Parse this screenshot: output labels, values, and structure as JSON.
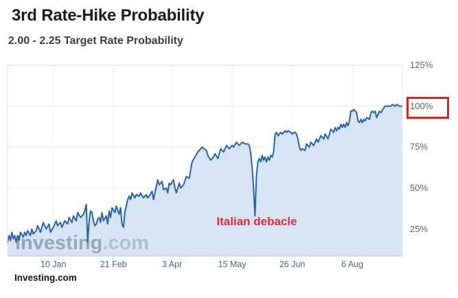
{
  "page": {
    "title": "3rd Rate-Hike Probability",
    "subtitle": "2.00 - 2.25 Target Rate Probability",
    "source": "Investing.com"
  },
  "watermark": {
    "brand": "Investing",
    "domain": ".com"
  },
  "annotation": {
    "text": "Italian debacle",
    "color": "#e22b2b",
    "anchor_day": 173
  },
  "highlight": {
    "label": "100%",
    "y_value": 100,
    "box_color": "#e01f1f"
  },
  "chart_data": {
    "type": "area",
    "title": "3rd Rate-Hike Probability",
    "subtitle": "2.00 - 2.25 Target Rate Probability",
    "x_unit": "days since start date",
    "start_date": "2017-12-09",
    "end_date": "2018-09-11",
    "x_domain": [
      0,
      276
    ],
    "y_visible_range": [
      8.4,
      125
    ],
    "ylabel": "probability (%)",
    "grid": true,
    "legend": false,
    "line_color": "#2563a7",
    "fill_color": "#d7e4f4",
    "grid_color": "#ececf3",
    "y_ticks": [
      25,
      50,
      75,
      100,
      125
    ],
    "y_tick_labels": [
      "25%",
      "50%",
      "75%",
      "100%",
      "125%"
    ],
    "x_ticks": [
      {
        "day": 32,
        "label": "10 Jan"
      },
      {
        "day": 74,
        "label": "21 Feb"
      },
      {
        "day": 115,
        "label": "3 Apr"
      },
      {
        "day": 157,
        "label": "15 May"
      },
      {
        "day": 199,
        "label": "26 Jun"
      },
      {
        "day": 241,
        "label": "6 Aug"
      }
    ],
    "points": [
      [
        0,
        17
      ],
      [
        1,
        21
      ],
      [
        2,
        18
      ],
      [
        3,
        23
      ],
      [
        4,
        19
      ],
      [
        5,
        21
      ],
      [
        6,
        17
      ],
      [
        7,
        21
      ],
      [
        8,
        18
      ],
      [
        9,
        23
      ],
      [
        11,
        20
      ],
      [
        12,
        23
      ],
      [
        13,
        21
      ],
      [
        14,
        24
      ],
      [
        16,
        21
      ],
      [
        17,
        25
      ],
      [
        18,
        22
      ],
      [
        20,
        24
      ],
      [
        21,
        27
      ],
      [
        23,
        23
      ],
      [
        24,
        26
      ],
      [
        25,
        29
      ],
      [
        27,
        25
      ],
      [
        29,
        28
      ],
      [
        30,
        23
      ],
      [
        32,
        26
      ],
      [
        34,
        30
      ],
      [
        35,
        27
      ],
      [
        37,
        29
      ],
      [
        38,
        26
      ],
      [
        40,
        30
      ],
      [
        42,
        28
      ],
      [
        43,
        32
      ],
      [
        45,
        29
      ],
      [
        46,
        33
      ],
      [
        48,
        30
      ],
      [
        49,
        35
      ],
      [
        51,
        32
      ],
      [
        53,
        34
      ],
      [
        54,
        36
      ],
      [
        55,
        40
      ],
      [
        56,
        17
      ],
      [
        57,
        30
      ],
      [
        58,
        36
      ],
      [
        59,
        35
      ],
      [
        60,
        30
      ],
      [
        61,
        27
      ],
      [
        62,
        28
      ],
      [
        63,
        31
      ],
      [
        64,
        32
      ],
      [
        65,
        29
      ],
      [
        66,
        35
      ],
      [
        67,
        30
      ],
      [
        69,
        33
      ],
      [
        70,
        28
      ],
      [
        71,
        36
      ],
      [
        72,
        32
      ],
      [
        73,
        38
      ],
      [
        75,
        35
      ],
      [
        76,
        39
      ],
      [
        78,
        34
      ],
      [
        79,
        38
      ],
      [
        80,
        28
      ],
      [
        81,
        26
      ],
      [
        82,
        35
      ],
      [
        84,
        43
      ],
      [
        85,
        45
      ],
      [
        86,
        43
      ],
      [
        87,
        47
      ],
      [
        89,
        44
      ],
      [
        90,
        46
      ],
      [
        92,
        45
      ],
      [
        93,
        47
      ],
      [
        95,
        44
      ],
      [
        97,
        46
      ],
      [
        98,
        44
      ],
      [
        99,
        45
      ],
      [
        101,
        48
      ],
      [
        102,
        43
      ],
      [
        104,
        51
      ],
      [
        105,
        55
      ],
      [
        106,
        52
      ],
      [
        108,
        54
      ],
      [
        109,
        49
      ],
      [
        111,
        50
      ],
      [
        112,
        47
      ],
      [
        113,
        53
      ],
      [
        114,
        52
      ],
      [
        116,
        55
      ],
      [
        117,
        50
      ],
      [
        118,
        47
      ],
      [
        120,
        53
      ],
      [
        121,
        50
      ],
      [
        123,
        52
      ],
      [
        125,
        57
      ],
      [
        127,
        56
      ],
      [
        129,
        66
      ],
      [
        131,
        69
      ],
      [
        133,
        72
      ],
      [
        136,
        75
      ],
      [
        139,
        73
      ],
      [
        140,
        70
      ],
      [
        142,
        67
      ],
      [
        144,
        69
      ],
      [
        145,
        71
      ],
      [
        147,
        68
      ],
      [
        149,
        74
      ],
      [
        151,
        72
      ],
      [
        153,
        76
      ],
      [
        155,
        74
      ],
      [
        157,
        76
      ],
      [
        158,
        75
      ],
      [
        160,
        78
      ],
      [
        162,
        76
      ],
      [
        164,
        78
      ],
      [
        166,
        77
      ],
      [
        168,
        77
      ],
      [
        169,
        76
      ],
      [
        170,
        71
      ],
      [
        171,
        62
      ],
      [
        172,
        50
      ],
      [
        173,
        33
      ],
      [
        174,
        58
      ],
      [
        175,
        66
      ],
      [
        176,
        68
      ],
      [
        177,
        66
      ],
      [
        178,
        70
      ],
      [
        179,
        67
      ],
      [
        180,
        69
      ],
      [
        181,
        66
      ],
      [
        182,
        69
      ],
      [
        183,
        67
      ],
      [
        184,
        70
      ],
      [
        185,
        69
      ],
      [
        186,
        72
      ],
      [
        187,
        83
      ],
      [
        188,
        84
      ],
      [
        189,
        82
      ],
      [
        190,
        83
      ],
      [
        191,
        84
      ],
      [
        192,
        83
      ],
      [
        193,
        84
      ],
      [
        194,
        85
      ],
      [
        195,
        84
      ],
      [
        196,
        85
      ],
      [
        198,
        84
      ],
      [
        199,
        83
      ],
      [
        200,
        84
      ],
      [
        201,
        84
      ],
      [
        202,
        83
      ],
      [
        203,
        80
      ],
      [
        204,
        75
      ],
      [
        205,
        73
      ],
      [
        206,
        74
      ],
      [
        208,
        73
      ],
      [
        209,
        77
      ],
      [
        211,
        75
      ],
      [
        212,
        78
      ],
      [
        214,
        76
      ],
      [
        216,
        80
      ],
      [
        217,
        78
      ],
      [
        219,
        82
      ],
      [
        221,
        80
      ],
      [
        222,
        83
      ],
      [
        224,
        80
      ],
      [
        225,
        83
      ],
      [
        226,
        86
      ],
      [
        228,
        84
      ],
      [
        229,
        87
      ],
      [
        230,
        85
      ],
      [
        231,
        87
      ],
      [
        232,
        86
      ],
      [
        233,
        89
      ],
      [
        234,
        87
      ],
      [
        235,
        89
      ],
      [
        236,
        87
      ],
      [
        237,
        90
      ],
      [
        238,
        88
      ],
      [
        239,
        91
      ],
      [
        240,
        97
      ],
      [
        241,
        97
      ],
      [
        242,
        98
      ],
      [
        243,
        97
      ],
      [
        244,
        96
      ],
      [
        245,
        91
      ],
      [
        246,
        90
      ],
      [
        247,
        92
      ],
      [
        248,
        90
      ],
      [
        249,
        92
      ],
      [
        250,
        91
      ],
      [
        251,
        93
      ],
      [
        253,
        92
      ],
      [
        254,
        96
      ],
      [
        255,
        97
      ],
      [
        256,
        96
      ],
      [
        257,
        97
      ],
      [
        258,
        93
      ],
      [
        260,
        97
      ],
      [
        261,
        96
      ],
      [
        263,
        99
      ],
      [
        264,
        100
      ],
      [
        266,
        100
      ],
      [
        268,
        100
      ],
      [
        269,
        101
      ],
      [
        271,
        100
      ],
      [
        272,
        101
      ],
      [
        274,
        100
      ],
      [
        276,
        100
      ]
    ]
  }
}
